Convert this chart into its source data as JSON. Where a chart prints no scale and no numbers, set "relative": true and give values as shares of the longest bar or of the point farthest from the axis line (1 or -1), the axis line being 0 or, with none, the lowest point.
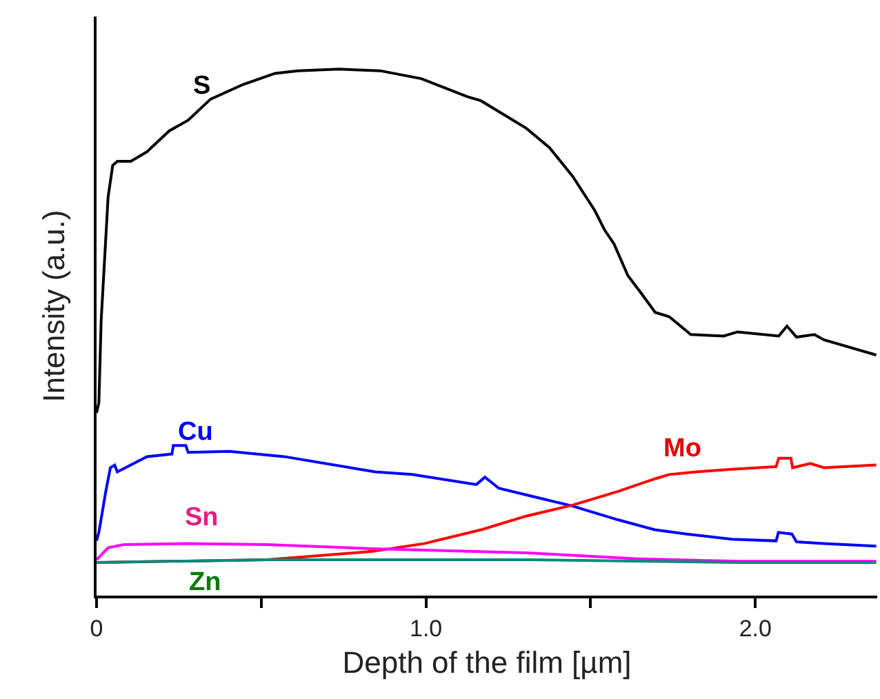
{
  "chart_data": {
    "type": "line",
    "relative": true,
    "xlabel": "Depth of the film [µm]",
    "ylabel": "Intensity (a.u.)",
    "xlim": [
      0,
      2.37
    ],
    "xticks": [
      0,
      {
        "value": 0.5,
        "label": null
      },
      {
        "value": 1.0,
        "label": "1.0"
      },
      {
        "value": 1.5,
        "label": null
      },
      {
        "value": 2.0,
        "label": "2.0"
      }
    ],
    "legend": false,
    "series": [
      {
        "name": "S",
        "color": "#000000",
        "x": [
          0,
          0.007,
          0.014,
          0.035,
          0.049,
          0.063,
          0.104,
          0.153,
          0.221,
          0.278,
          0.346,
          0.445,
          0.542,
          0.611,
          0.736,
          0.861,
          0.986,
          1.125,
          1.167,
          1.304,
          1.375,
          1.446,
          1.513,
          1.542,
          1.571,
          1.613,
          1.654,
          1.696,
          1.738,
          1.804,
          1.904,
          1.946,
          2.071,
          2.096,
          2.125,
          2.179,
          2.208,
          2.367
        ],
        "values": [
          0.347,
          0.366,
          0.522,
          0.757,
          0.817,
          0.825,
          0.825,
          0.843,
          0.883,
          0.903,
          0.943,
          0.971,
          0.992,
          0.997,
          1.0,
          0.997,
          0.982,
          0.948,
          0.94,
          0.888,
          0.851,
          0.796,
          0.731,
          0.695,
          0.668,
          0.608,
          0.574,
          0.538,
          0.53,
          0.496,
          0.493,
          0.501,
          0.493,
          0.512,
          0.491,
          0.496,
          0.486,
          0.457
        ]
      },
      {
        "name": "Cu",
        "color": "#0000ff",
        "x": [
          0,
          0.007,
          0.028,
          0.042,
          0.055,
          0.063,
          0.153,
          0.229,
          0.233,
          0.271,
          0.278,
          0.403,
          0.57,
          0.846,
          0.958,
          1.153,
          1.179,
          1.221,
          1.445,
          1.583,
          1.695,
          1.792,
          1.929,
          2.063,
          2.07,
          2.111,
          2.125,
          2.208,
          2.367
        ],
        "values": [
          0.104,
          0.12,
          0.198,
          0.243,
          0.248,
          0.235,
          0.264,
          0.269,
          0.285,
          0.285,
          0.272,
          0.274,
          0.264,
          0.235,
          0.23,
          0.211,
          0.225,
          0.204,
          0.17,
          0.144,
          0.125,
          0.117,
          0.107,
          0.104,
          0.12,
          0.117,
          0.102,
          0.099,
          0.094
        ]
      },
      {
        "name": "Mo",
        "color": "#ff0000",
        "x": [
          0,
          0.517,
          0.838,
          0.996,
          1.167,
          1.304,
          1.446,
          1.583,
          1.696,
          1.738,
          1.821,
          1.929,
          2.063,
          2.071,
          2.108,
          2.113,
          2.167,
          2.208,
          2.367
        ],
        "values": [
          0.063,
          0.068,
          0.084,
          0.099,
          0.125,
          0.151,
          0.172,
          0.198,
          0.222,
          0.23,
          0.235,
          0.24,
          0.245,
          0.261,
          0.261,
          0.243,
          0.251,
          0.243,
          0.248
        ]
      },
      {
        "name": "Sn",
        "color": "#ff00ff",
        "x": [
          0,
          0.035,
          0.083,
          0.275,
          0.517,
          0.838,
          1.317,
          1.638,
          1.958,
          2.367
        ],
        "values": [
          0.068,
          0.091,
          0.097,
          0.099,
          0.097,
          0.089,
          0.081,
          0.07,
          0.065,
          0.065
        ]
      },
      {
        "name": "Zn",
        "color": "#008b7a",
        "x": [
          0,
          0.517,
          1.317,
          1.958,
          2.367
        ],
        "values": [
          0.063,
          0.068,
          0.068,
          0.063,
          0.063
        ]
      }
    ]
  }
}
